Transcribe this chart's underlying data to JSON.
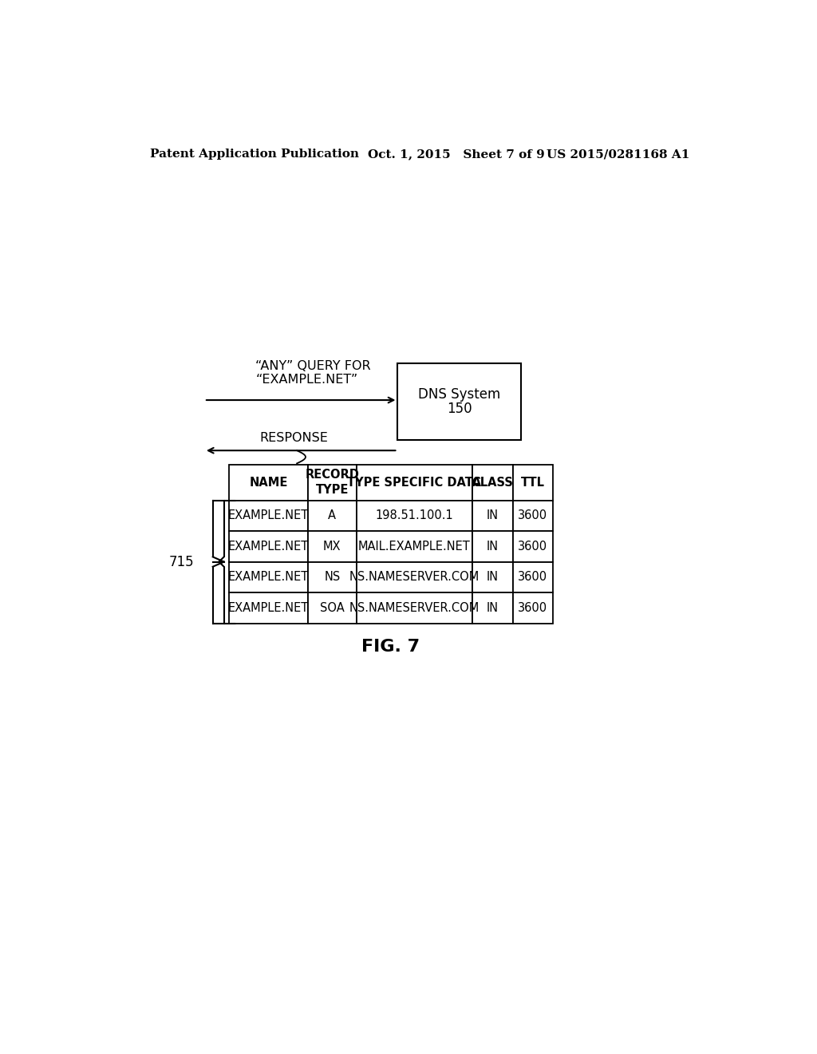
{
  "title_left": "Patent Application Publication",
  "title_center": "Oct. 1, 2015   Sheet 7 of 9",
  "title_right": "US 2015/0281168 A1",
  "query_label_line1": "“ANY” QUERY FOR",
  "query_label_line2": "“EXAMPLE.NET”",
  "response_label": "RESPONSE",
  "dns_box_label_line1": "DNS System",
  "dns_box_label_line2": "150",
  "label_715": "715",
  "fig_label": "FIG. 7",
  "table_headers": [
    "NAME",
    "RECORD\nTYPE",
    "TYPE SPECIFIC DATA",
    "CLASS",
    "TTL"
  ],
  "table_rows": [
    [
      "EXAMPLE.NET",
      "A",
      "198.51.100.1",
      "IN",
      "3600"
    ],
    [
      "EXAMPLE.NET",
      "MX",
      "MAIL.EXAMPLE.NET",
      "IN",
      "3600"
    ],
    [
      "EXAMPLE.NET",
      "NS",
      "NS.NAMESERVER.COM",
      "IN",
      "3600"
    ],
    [
      "EXAMPLE.NET",
      "SOA",
      "NS.NAMESERVER.COM",
      "IN",
      "3600"
    ]
  ],
  "background_color": "#ffffff",
  "text_color": "#000000",
  "line_color": "#000000"
}
